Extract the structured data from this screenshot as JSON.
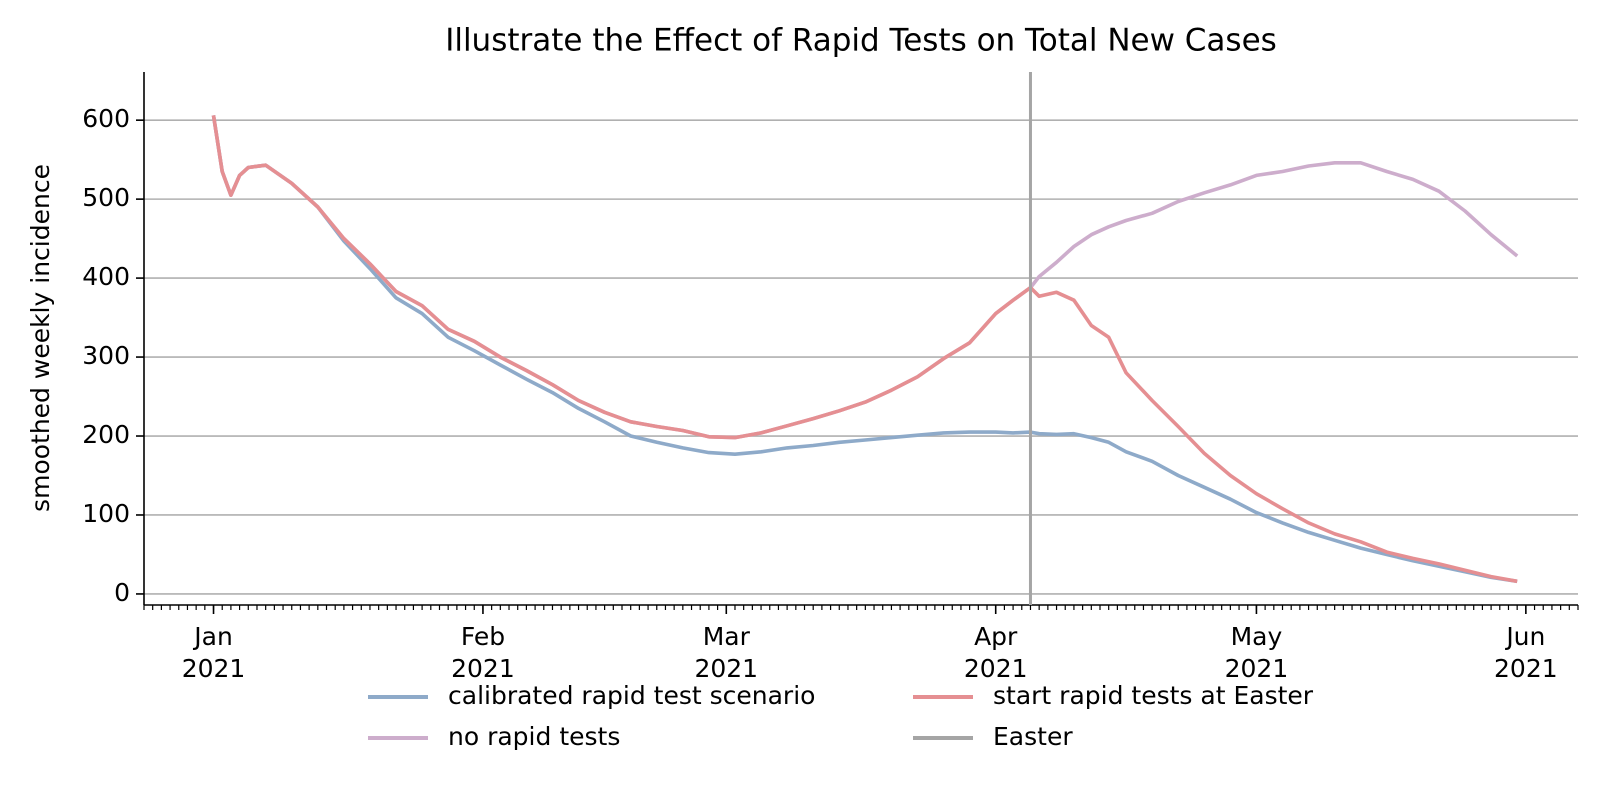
{
  "chart_data": {
    "type": "line",
    "title": "Illustrate the Effect of Rapid Tests on Total New Cases",
    "ylabel": "smoothed weekly incidence",
    "x": [
      "2021-01-01",
      "2021-01-02",
      "2021-01-03",
      "2021-01-04",
      "2021-01-05",
      "2021-01-07",
      "2021-01-10",
      "2021-01-13",
      "2021-01-16",
      "2021-01-19",
      "2021-01-22",
      "2021-01-25",
      "2021-01-28",
      "2021-01-31",
      "2021-02-03",
      "2021-02-06",
      "2021-02-09",
      "2021-02-12",
      "2021-02-15",
      "2021-02-18",
      "2021-02-21",
      "2021-02-24",
      "2021-02-27",
      "2021-03-02",
      "2021-03-05",
      "2021-03-08",
      "2021-03-11",
      "2021-03-14",
      "2021-03-17",
      "2021-03-20",
      "2021-03-23",
      "2021-03-26",
      "2021-03-29",
      "2021-04-01",
      "2021-04-03",
      "2021-04-05",
      "2021-04-06",
      "2021-04-08",
      "2021-04-10",
      "2021-04-12",
      "2021-04-14",
      "2021-04-16",
      "2021-04-19",
      "2021-04-22",
      "2021-04-25",
      "2021-04-28",
      "2021-05-01",
      "2021-05-04",
      "2021-05-07",
      "2021-05-10",
      "2021-05-13",
      "2021-05-16",
      "2021-05-19",
      "2021-05-22",
      "2021-05-25",
      "2021-05-28",
      "2021-05-31"
    ],
    "series": [
      {
        "name": "calibrated rapid test scenario",
        "color": "#8eaac9",
        "values": [
          606,
          535,
          505,
          530,
          540,
          543,
          520,
          490,
          447,
          412,
          375,
          355,
          325,
          308,
          290,
          272,
          255,
          235,
          218,
          200,
          192,
          185,
          179,
          177,
          180,
          185,
          188,
          192,
          195,
          198,
          201,
          204,
          205,
          205,
          204,
          205,
          203,
          202,
          203,
          198,
          192,
          180,
          168,
          150,
          135,
          120,
          103,
          90,
          78,
          68,
          58,
          50,
          42,
          35,
          28,
          21,
          16
        ]
      },
      {
        "name": "no rapid tests",
        "color": "#cdadcc",
        "values": [
          606,
          535,
          505,
          530,
          540,
          543,
          520,
          490,
          450,
          418,
          383,
          365,
          335,
          320,
          300,
          283,
          265,
          245,
          230,
          218,
          212,
          207,
          199,
          198,
          204,
          213,
          222,
          232,
          243,
          258,
          275,
          298,
          318,
          355,
          372,
          388,
          402,
          420,
          440,
          455,
          465,
          473,
          482,
          497,
          508,
          518,
          530,
          535,
          542,
          546,
          546,
          535,
          525,
          510,
          485,
          455,
          428
        ]
      },
      {
        "name": "start rapid tests at Easter",
        "color": "#e58f92",
        "values": [
          606,
          535,
          505,
          530,
          540,
          543,
          520,
          490,
          450,
          418,
          383,
          365,
          335,
          320,
          300,
          283,
          265,
          245,
          230,
          218,
          212,
          207,
          199,
          198,
          204,
          213,
          222,
          232,
          243,
          258,
          275,
          298,
          318,
          355,
          372,
          388,
          377,
          382,
          372,
          340,
          325,
          280,
          245,
          212,
          178,
          150,
          127,
          108,
          90,
          76,
          66,
          53,
          45,
          38,
          30,
          22,
          16
        ]
      }
    ],
    "vline": {
      "name": "Easter",
      "x": "2021-04-05",
      "color": "#a5a5a5"
    },
    "xlim": [
      "2020-12-24",
      "2021-06-07"
    ],
    "xticks": [
      {
        "value": "2021-01-01",
        "label": "Jan 2021"
      },
      {
        "value": "2021-02-01",
        "label": "Feb 2021"
      },
      {
        "value": "2021-03-01",
        "label": "Mar 2021"
      },
      {
        "value": "2021-04-01",
        "label": "Apr 2021"
      },
      {
        "value": "2021-05-01",
        "label": "May 2021"
      },
      {
        "value": "2021-06-01",
        "label": "Jun 2021"
      }
    ],
    "ylim": [
      -14,
      661
    ],
    "yticks": [
      0,
      100,
      200,
      300,
      400,
      500,
      600
    ],
    "grid": true,
    "legend": "bottom"
  }
}
